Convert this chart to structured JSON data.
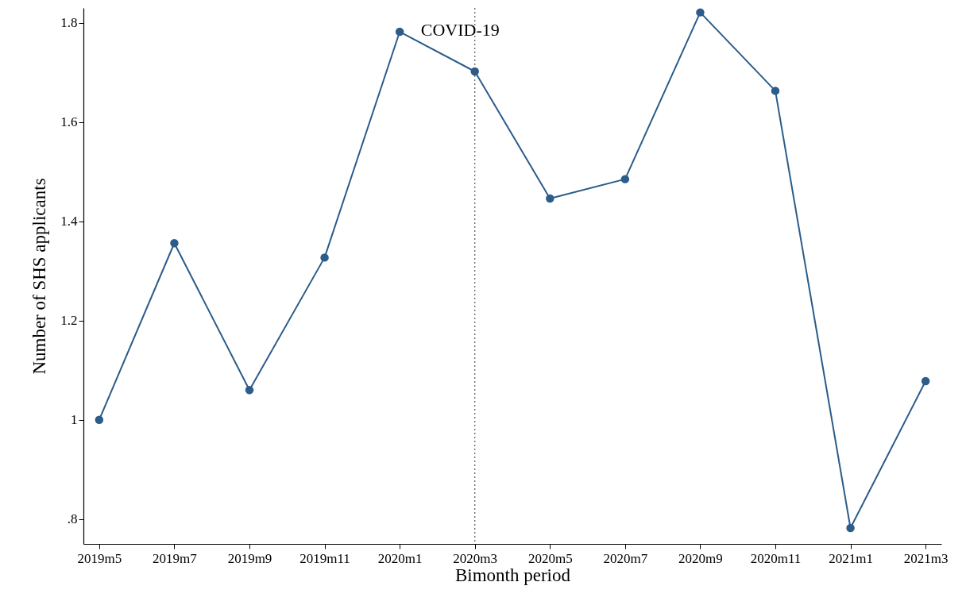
{
  "chart_data": {
    "type": "line",
    "xlabel": "Bimonth period",
    "ylabel": "Number of SHS applicants",
    "categories": [
      "2019m5",
      "2019m7",
      "2019m9",
      "2019m11",
      "2020m1",
      "2020m3",
      "2020m5",
      "2020m7",
      "2020m9",
      "2020m11",
      "2021m1",
      "2021m3"
    ],
    "series": [
      {
        "color": "#2b5c8a",
        "values": [
          1.0,
          1.356,
          1.06,
          1.327,
          1.782,
          1.702,
          1.446,
          1.485,
          1.821,
          1.663,
          0.782,
          1.078
        ]
      }
    ],
    "ylim": [
      0.75,
      1.83
    ],
    "yticks": [
      {
        "value": 0.8,
        "label": ".8"
      },
      1,
      1.2,
      1.4,
      1.6,
      1.8
    ],
    "ref_lines": [
      {
        "axis": "x",
        "value": "2020m3",
        "label": "COVID-19",
        "color": "#555555",
        "line_style": "dotted"
      }
    ],
    "grid": false,
    "marker": "circle",
    "line_style": "solid"
  }
}
